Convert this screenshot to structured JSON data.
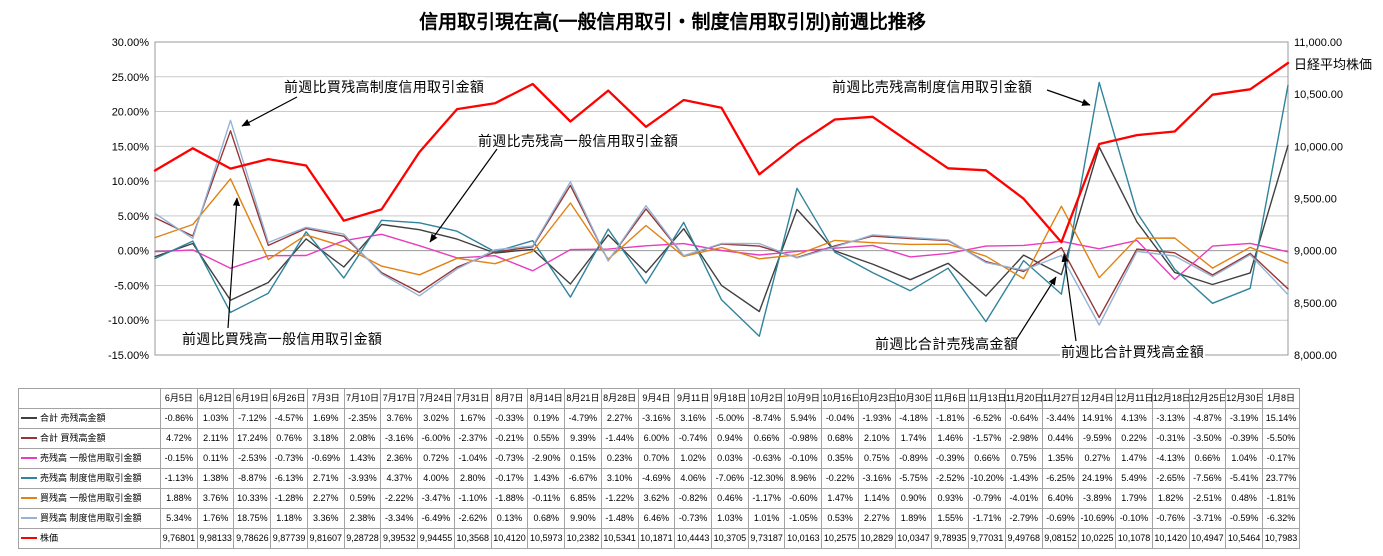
{
  "title": "信用取引現在高(一般信用取引・制度信用取引別)前週比推移",
  "right_axis_title": "日経平均株価",
  "annotations": [
    {
      "label": "前週比買残高制度信用取引金額"
    },
    {
      "label": "前週比売残高一般信用取引金額"
    },
    {
      "label": "前週比買残高一般信用取引金額"
    },
    {
      "label": "前週比売残高制度信用取引金額"
    },
    {
      "label": "前週比合計売残高金額"
    },
    {
      "label": "前週比合計買残高金額"
    }
  ],
  "chart_data": {
    "type": "line",
    "grid": "horizontal",
    "legend_position": "data-table",
    "categories": [
      "6月5日",
      "6月12日",
      "6月19日",
      "6月26日",
      "7月3日",
      "7月10日",
      "7月17日",
      "7月24日",
      "7月31日",
      "8月7日",
      "8月14日",
      "8月21日",
      "8月28日",
      "9月4日",
      "9月11日",
      "9月18日",
      "10月2日",
      "10月9日",
      "10月16日",
      "10月23日",
      "10月30日",
      "11月6日",
      "11月13日",
      "11月20日",
      "11月27日",
      "12月4日",
      "12月11日",
      "12月18日",
      "12月25日",
      "12月30日",
      "1月8日"
    ],
    "left_axis": {
      "min": -15,
      "max": 30,
      "step": 5,
      "ticks": [
        "30.00%",
        "25.00%",
        "20.00%",
        "15.00%",
        "10.00%",
        "5.00%",
        "0.00%",
        "-5.00%",
        "-10.00%",
        "-15.00%"
      ]
    },
    "right_axis": {
      "min": 8000,
      "max": 11000,
      "step": 500,
      "ticks": [
        "11,000.00",
        "10,500.00",
        "10,000.00",
        "9,500.00",
        "9,000.00",
        "8,500.00",
        "8,000.00"
      ]
    },
    "series": [
      {
        "name": "合計 売残高金額",
        "color": "#404040",
        "axis": "left",
        "values": [
          -0.86,
          1.03,
          -7.12,
          -4.57,
          1.69,
          -2.35,
          3.76,
          3.02,
          1.67,
          -0.33,
          0.19,
          -4.79,
          2.27,
          -3.16,
          3.16,
          -5.0,
          -8.74,
          5.94,
          -0.04,
          -1.93,
          -4.18,
          -1.81,
          -6.52,
          -0.64,
          -3.44,
          14.91,
          4.13,
          -3.13,
          -4.87,
          -3.19,
          15.14
        ]
      },
      {
        "name": "合計 買残高金額",
        "color": "#953735",
        "axis": "left",
        "values": [
          4.72,
          2.11,
          17.24,
          0.76,
          3.18,
          2.08,
          -3.16,
          -6.0,
          -2.37,
          -0.21,
          0.55,
          9.39,
          -1.44,
          6.0,
          -0.74,
          0.94,
          0.66,
          -0.98,
          0.68,
          2.1,
          1.74,
          1.46,
          -1.57,
          -2.98,
          0.44,
          -9.59,
          0.22,
          -0.31,
          -3.5,
          -0.39,
          -5.5
        ]
      },
      {
        "name": "売残高 一般信用取引金額",
        "color": "#E93CBE",
        "axis": "left",
        "values": [
          -0.15,
          0.11,
          -2.53,
          -0.73,
          -0.69,
          1.43,
          2.36,
          0.72,
          -1.04,
          -0.73,
          -2.9,
          0.15,
          0.23,
          0.7,
          1.02,
          0.03,
          -0.63,
          -0.1,
          0.35,
          0.75,
          -0.89,
          -0.39,
          0.66,
          0.75,
          1.35,
          0.27,
          1.47,
          -4.13,
          0.66,
          1.04,
          -0.17
        ]
      },
      {
        "name": "売残高 制度信用取引金額",
        "color": "#31849B",
        "axis": "left",
        "values": [
          -1.13,
          1.38,
          -8.87,
          -6.13,
          2.71,
          -3.93,
          4.37,
          4.0,
          2.8,
          -0.17,
          1.43,
          -6.67,
          3.1,
          -4.69,
          4.06,
          -7.06,
          -12.3,
          8.96,
          -0.22,
          -3.16,
          -5.75,
          -2.52,
          -10.2,
          -1.43,
          -6.25,
          24.19,
          5.49,
          -2.65,
          -7.56,
          -5.41,
          23.77
        ]
      },
      {
        "name": "買残高 一般信用取引金額",
        "color": "#E08214",
        "axis": "left",
        "values": [
          1.88,
          3.76,
          10.33,
          -1.28,
          2.27,
          0.59,
          -2.22,
          -3.47,
          -1.1,
          -1.88,
          -0.11,
          6.85,
          -1.22,
          3.62,
          -0.82,
          0.46,
          -1.17,
          -0.6,
          1.47,
          1.14,
          0.9,
          0.93,
          -0.79,
          -4.01,
          6.4,
          -3.89,
          1.79,
          1.82,
          -2.51,
          0.48,
          -1.81
        ]
      },
      {
        "name": "買残高 制度信用取引金額",
        "color": "#95B3D7",
        "axis": "left",
        "values": [
          5.34,
          1.76,
          18.75,
          1.18,
          3.36,
          2.38,
          -3.34,
          -6.49,
          -2.62,
          0.13,
          0.68,
          9.9,
          -1.48,
          6.46,
          -0.73,
          1.03,
          1.01,
          -1.05,
          0.53,
          2.27,
          1.89,
          1.55,
          -1.71,
          -2.79,
          -0.69,
          -10.69,
          -0.1,
          -0.76,
          -3.71,
          -0.59,
          -6.32
        ]
      },
      {
        "name": "株価",
        "color": "#FF0000",
        "axis": "right",
        "values": [
          9768.01,
          9981.33,
          9786.26,
          9877.39,
          9816.07,
          9287.28,
          9395.32,
          9944.55,
          10356.8,
          10412.0,
          10597.3,
          10238.2,
          10534.1,
          10187.1,
          10444.3,
          10370.5,
          9731.87,
          10016.3,
          10257.5,
          10282.9,
          10034.7,
          9789.35,
          9770.31,
          9497.68,
          9081.52,
          10022.5,
          10107.8,
          10142.0,
          10494.7,
          10546.4,
          10798.3
        ],
        "display": [
          "9,76801",
          "9,98133",
          "9,78626",
          "9,87739",
          "9,81607",
          "9,28728",
          "9,39532",
          "9,94455",
          "10,3568",
          "10,4120",
          "10,5973",
          "10,2382",
          "10,5341",
          "10,1871",
          "10,4443",
          "10,3705",
          "9,73187",
          "10,0163",
          "10,2575",
          "10,2829",
          "10,0347",
          "9,78935",
          "9,77031",
          "9,49768",
          "9,08152",
          "10,0225",
          "10,1078",
          "10,1420",
          "10,4947",
          "10,5464",
          "10,7983"
        ]
      }
    ]
  }
}
